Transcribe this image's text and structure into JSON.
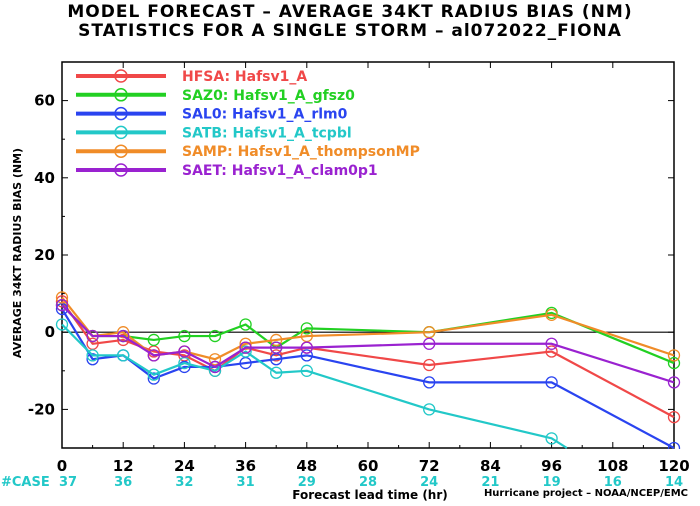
{
  "title_line1": "MODEL FORECAST – AVERAGE 34KT RADIUS BIAS (NM)",
  "title_line2": "STATISTICS FOR A SINGLE STORM – al072022_FIONA",
  "footer": "Hurricane project – NOAA/NCEP/EMC",
  "case_label": "#CASE",
  "case_counts": [
    "37",
    "36",
    "32",
    "31",
    "29",
    "28",
    "24",
    "21",
    "19",
    "16",
    "14"
  ],
  "chart_data": {
    "type": "line",
    "xlabel": "Forecast lead time (hr)",
    "ylabel": "AVERAGE 34KT RADIUS BIAS (NM)",
    "xlim": [
      0,
      120
    ],
    "ylim": [
      -30,
      70
    ],
    "xticks": [
      0,
      12,
      24,
      36,
      48,
      60,
      72,
      84,
      96,
      108,
      120
    ],
    "yticks": [
      -20,
      0,
      20,
      40,
      60
    ],
    "legend_position": "top-left",
    "zero_line": true,
    "series": [
      {
        "name": "HFSA:  Hafsv1_A",
        "color": "#f04848",
        "x": [
          0,
          6,
          12,
          18,
          24,
          30,
          36,
          42,
          48,
          72,
          96,
          120
        ],
        "y": [
          8,
          -3,
          -2,
          -5,
          -6,
          -10,
          -4,
          -6,
          -4,
          -8.5,
          -5,
          -22
        ]
      },
      {
        "name": "SAZ0:  Hafsv1_A_gfsz0",
        "color": "#22d022",
        "x": [
          0,
          6,
          12,
          18,
          24,
          30,
          36,
          42,
          48,
          72,
          96,
          120
        ],
        "y": [
          7,
          -1,
          -1,
          -2,
          -1,
          -1,
          2,
          -4,
          1,
          0,
          5,
          -8
        ]
      },
      {
        "name": "SAL0:  Hafsv1_A_rlm0",
        "color": "#2a44f0",
        "x": [
          0,
          6,
          12,
          18,
          24,
          30,
          36,
          42,
          48,
          72,
          96,
          120
        ],
        "y": [
          6,
          -7,
          -6,
          -12,
          -9,
          -9,
          -8,
          -7,
          -6,
          -13,
          -13,
          -30
        ]
      },
      {
        "name": "SATB:  Hafsv1_A_tcpbl",
        "color": "#22c8c8",
        "x": [
          0,
          6,
          12,
          18,
          24,
          30,
          36,
          42,
          48,
          72,
          96,
          99
        ],
        "y": [
          2,
          -6,
          -6,
          -11,
          -8,
          -10,
          -5,
          -10.5,
          -10,
          -20,
          -27.5,
          -30
        ]
      },
      {
        "name": "SAMP:  Hafsv1_A_thompsonMP",
        "color": "#f08c28",
        "x": [
          0,
          6,
          12,
          18,
          24,
          30,
          36,
          42,
          48,
          72,
          96,
          120
        ],
        "y": [
          9,
          -1,
          0,
          -6,
          -5,
          -7,
          -3,
          -2,
          -1,
          0,
          4.5,
          -6
        ]
      },
      {
        "name": "SAET:  Hafsv1_A_clam0p1",
        "color": "#9a22d0",
        "x": [
          0,
          6,
          12,
          18,
          24,
          30,
          36,
          42,
          48,
          72,
          96,
          120
        ],
        "y": [
          7,
          -1,
          -1,
          -6,
          -5,
          -9,
          -4,
          -4,
          -4,
          -3,
          -3,
          -13
        ]
      }
    ]
  }
}
